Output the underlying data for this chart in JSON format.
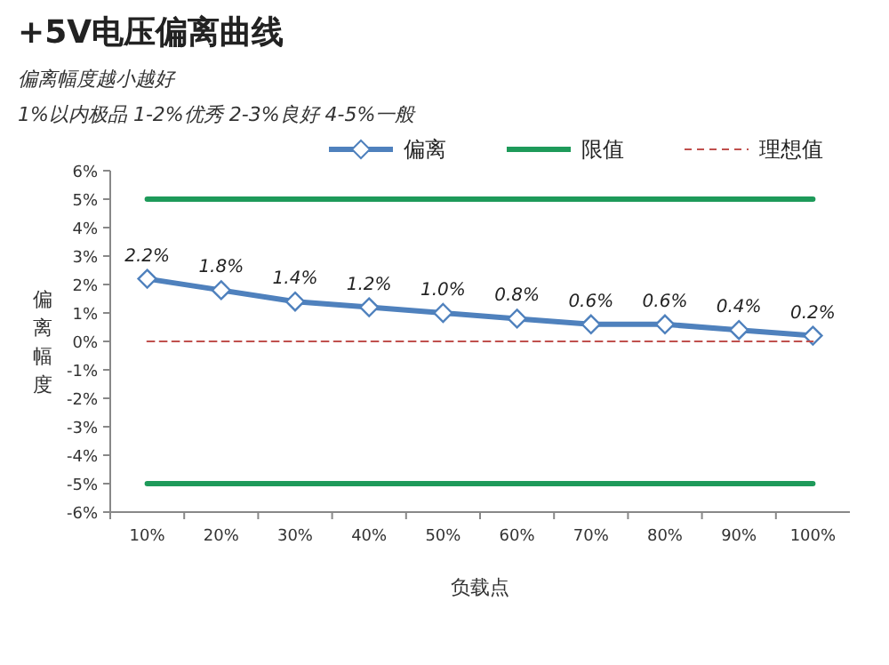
{
  "chart_data": {
    "type": "line",
    "title": "+5V电压偏离曲线",
    "subtitle": "偏离幅度越小越好",
    "annotations": [
      "1%以内极品 1-2%优秀 2-3%良好 4-5%一般"
    ],
    "xlabel": "负载点",
    "ylabel": "偏离幅度",
    "categories": [
      "10%",
      "20%",
      "30%",
      "40%",
      "50%",
      "60%",
      "70%",
      "80%",
      "90%",
      "100%"
    ],
    "series": [
      {
        "name": "偏离",
        "color": "#4f81bd",
        "marker": "diamond",
        "line_style": "solid",
        "values": [
          2.2,
          1.8,
          1.4,
          1.2,
          1.0,
          0.8,
          0.6,
          0.6,
          0.4,
          0.2
        ],
        "value_labels": [
          "2.2%",
          "1.8%",
          "1.4%",
          "1.2%",
          "1.0%",
          "0.8%",
          "0.6%",
          "0.6%",
          "0.4%",
          "0.2%"
        ]
      },
      {
        "name": "限值",
        "color": "#1e9a5a",
        "marker": "none",
        "line_style": "solid",
        "values": [
          5,
          5,
          5,
          5,
          5,
          5,
          5,
          5,
          5,
          5
        ]
      },
      {
        "color": "#1e9a5a",
        "marker": "none",
        "line_style": "solid",
        "values": [
          -5,
          -5,
          -5,
          -5,
          -5,
          -5,
          -5,
          -5,
          -5,
          -5
        ]
      },
      {
        "name": "理想值",
        "color": "#c0504d",
        "marker": "none",
        "line_style": "dashed",
        "values": [
          0,
          0,
          0,
          0,
          0,
          0,
          0,
          0,
          0,
          0
        ]
      }
    ],
    "ylim": [
      -6,
      6
    ],
    "yticks": [
      {
        "value": -6,
        "label": "-6%"
      },
      {
        "value": -5,
        "label": "-5%"
      },
      {
        "value": -4,
        "label": "-4%"
      },
      {
        "value": -3,
        "label": "-3%"
      },
      {
        "value": -2,
        "label": "-2%"
      },
      {
        "value": -1,
        "label": "-1%"
      },
      {
        "value": 0,
        "label": "0%"
      },
      {
        "value": 1,
        "label": "1%"
      },
      {
        "value": 2,
        "label": "2%"
      },
      {
        "value": 3,
        "label": "3%"
      },
      {
        "value": 4,
        "label": "4%"
      },
      {
        "value": 5,
        "label": "5%"
      },
      {
        "value": 6,
        "label": "6%"
      }
    ],
    "grid": false,
    "legend": "top"
  }
}
